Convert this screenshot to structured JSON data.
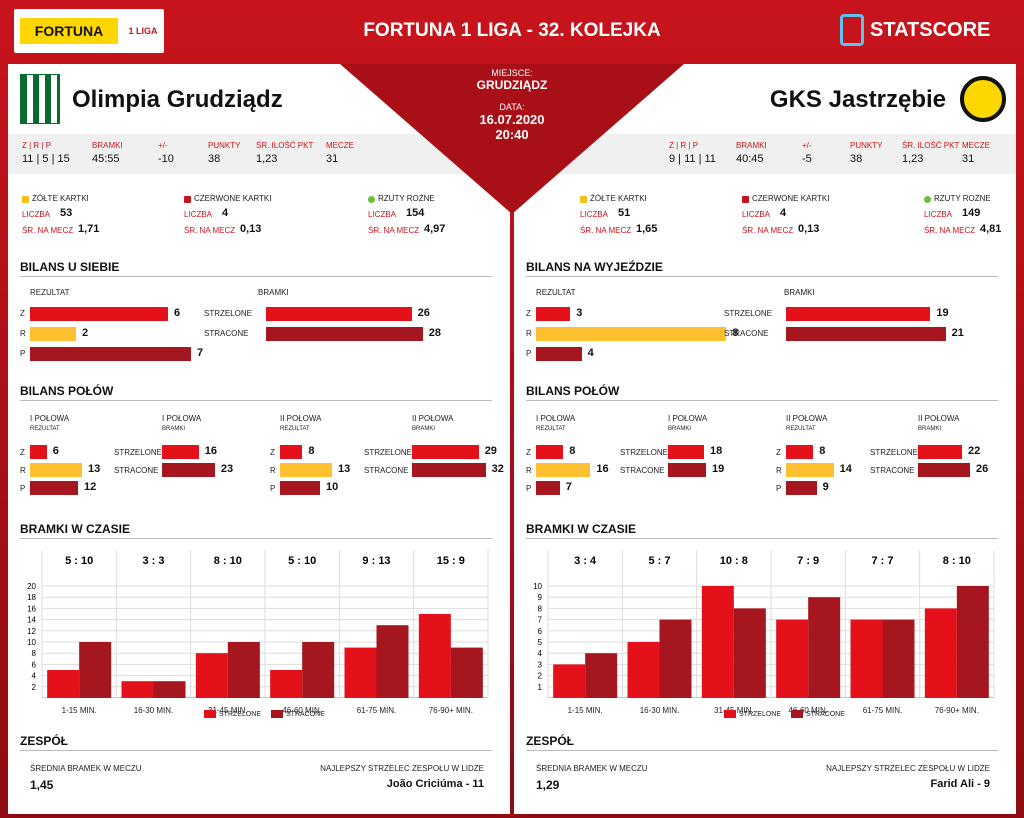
{
  "header": {
    "title": "FORTUNA 1 LIGA - 32. KOLEJKA",
    "sponsor": "FORTUNA",
    "league_logo": "1 LIGA",
    "brand": "STATSCORE"
  },
  "venue": {
    "place_label": "MIEJSCE:",
    "place": "GRUDZIĄDZ",
    "date_label": "DATA:",
    "date": "16.07.2020",
    "time": "20:40"
  },
  "colors": {
    "scored": "#e4101a",
    "draw": "#fec02f",
    "conceded": "#a6161e"
  },
  "teams": [
    {
      "name": "Olimpia Grudziądz",
      "crest": "olimpia-crest",
      "stats": {
        "zrp_label": "Z | R | P",
        "zrp": "11 | 5 | 15",
        "goals_label": "BRAMKI",
        "goals": "45:55",
        "diff_label": "+/-",
        "diff": "-10",
        "points_label": "PUNKTY",
        "points": "38",
        "avg_label": "ŚR. ILOŚĆ PKT",
        "avg": "1,23",
        "matches_label": "MECZE",
        "matches": "31"
      },
      "cards": {
        "yellow_label": "ŻÓŁTE KARTKI",
        "red_label": "CZERWONE KARTKI",
        "corners_label": "RZUTY ROŻNE",
        "count_label": "LICZBA",
        "avg_label": "ŚR. NA MECZ",
        "yellow": "53",
        "yellow_avg": "1,71",
        "red": "4",
        "red_avg": "0,13",
        "corners": "154",
        "corners_avg": "4,97"
      },
      "bilans_title": "BILANS U SIEBIE",
      "bilans": {
        "result_label": "REZULTAT",
        "goals_label": "BRAMKI",
        "z": 6,
        "r": 2,
        "p": 7,
        "scored": 26,
        "conceded": 28
      },
      "halves_title": "BILANS POŁÓW",
      "halves": {
        "h1": {
          "z": 6,
          "r": 13,
          "p": 12,
          "scored": 16,
          "conceded": 23
        },
        "h2": {
          "z": 8,
          "r": 13,
          "p": 10,
          "scored": 29,
          "conceded": 32
        }
      },
      "time_title": "BRAMKI W CZASIE",
      "chart_data": {
        "type": "bar",
        "categories": [
          "1-15 MIN.",
          "16-30 MIN.",
          "31-45 MIN.",
          "46-60 MIN.",
          "61-75 MIN.",
          "76-90+ MIN."
        ],
        "series": [
          {
            "name": "STRZELONE",
            "values": [
              5,
              3,
              8,
              5,
              9,
              15
            ]
          },
          {
            "name": "STRACONE",
            "values": [
              10,
              3,
              10,
              10,
              13,
              9
            ]
          }
        ],
        "ylim": [
          0,
          20
        ],
        "yticks": [
          2,
          4,
          6,
          8,
          10,
          12,
          14,
          16,
          18,
          20
        ],
        "score_labels": [
          "5 : 10",
          "3 : 3",
          "8 : 10",
          "5 : 10",
          "9 : 13",
          "15 : 9"
        ],
        "legend": "bottom"
      },
      "team_title": "ZESPÓŁ",
      "avg_goals_label": "ŚREDNIA BRAMEK W MECZU",
      "avg_goals": "1,45",
      "scorer_label": "NAJLEPSZY STRZELEC ZESPOŁU W LIDZE",
      "scorer": "João Criciúma - 11"
    },
    {
      "name": "GKS Jastrzębie",
      "crest": "gks-crest",
      "stats": {
        "zrp_label": "Z | R | P",
        "zrp": "9 | 11 | 11",
        "goals_label": "BRAMKI",
        "goals": "40:45",
        "diff_label": "+/-",
        "diff": "-5",
        "points_label": "PUNKTY",
        "points": "38",
        "avg_label": "ŚR. ILOŚĆ PKT",
        "avg": "1,23",
        "matches_label": "MECZE",
        "matches": "31"
      },
      "cards": {
        "yellow_label": "ŻÓŁTE KARTKI",
        "red_label": "CZERWONE KARTKI",
        "corners_label": "RZUTY ROŻNE",
        "count_label": "LICZBA",
        "avg_label": "ŚR. NA MECZ",
        "yellow": "51",
        "yellow_avg": "1,65",
        "red": "4",
        "red_avg": "0,13",
        "corners": "149",
        "corners_avg": "4,81"
      },
      "bilans_title": "BILANS NA WYJEŹDZIE",
      "bilans": {
        "result_label": "REZULTAT",
        "goals_label": "BRAMKI",
        "z": 3,
        "r": 8,
        "p": 4,
        "scored": 19,
        "conceded": 21
      },
      "halves_title": "BILANS POŁÓW",
      "halves": {
        "h1": {
          "z": 8,
          "r": 16,
          "p": 7,
          "scored": 18,
          "conceded": 19
        },
        "h2": {
          "z": 8,
          "r": 14,
          "p": 9,
          "scored": 22,
          "conceded": 26
        }
      },
      "time_title": "BRAMKI W CZASIE",
      "chart_data": {
        "type": "bar",
        "categories": [
          "1-15 MIN.",
          "16-30 MIN.",
          "31-45 MIN.",
          "46-60 MIN.",
          "61-75 MIN.",
          "76-90+ MIN."
        ],
        "series": [
          {
            "name": "STRZELONE",
            "values": [
              3,
              5,
              10,
              7,
              7,
              8
            ]
          },
          {
            "name": "STRACONE",
            "values": [
              4,
              7,
              8,
              9,
              7,
              10
            ]
          }
        ],
        "ylim": [
          0,
          10
        ],
        "yticks": [
          1,
          2,
          3,
          4,
          5,
          6,
          7,
          8,
          9,
          10
        ],
        "score_labels": [
          "3 : 4",
          "5 : 7",
          "10 : 8",
          "7 : 9",
          "7 : 7",
          "8 : 10"
        ],
        "legend": "bottom"
      },
      "team_title": "ZESPÓŁ",
      "avg_goals_label": "ŚREDNIA BRAMEK W MECZU",
      "avg_goals": "1,29",
      "scorer_label": "NAJLEPSZY STRZELEC ZESPOŁU W LIDZE",
      "scorer": "Farid Ali - 9"
    }
  ],
  "labels": {
    "z": "Z",
    "r": "R",
    "p": "P",
    "scored": "STRZELONE",
    "conceded": "STRACONE",
    "h1": "I POŁOWA",
    "h2": "II POŁOWA",
    "result": "REZULTAT",
    "goals": "BRAMKI"
  }
}
